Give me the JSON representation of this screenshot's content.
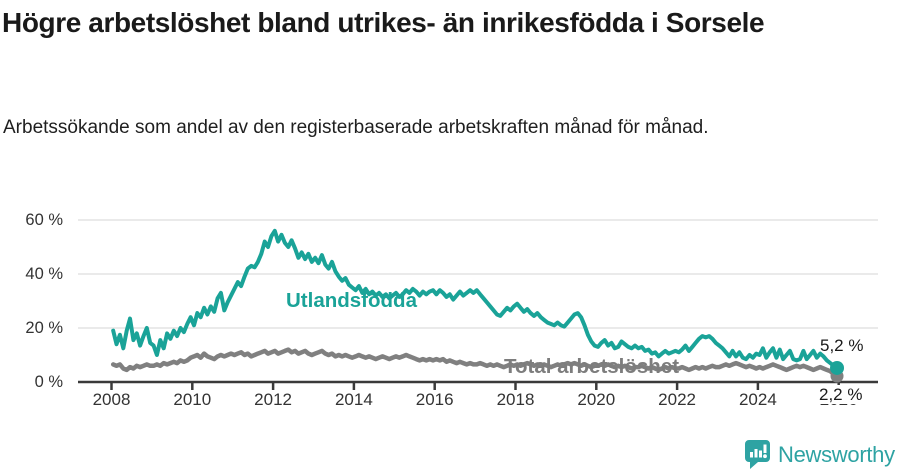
{
  "header": {
    "title": "Högre arbetslöshet bland utrikes- än inrikesfödda i Sorsele",
    "subtitle": "Arbetssökande som andel av den registerbaserade arbetskraften månad för månad."
  },
  "chart_data": {
    "type": "line",
    "title": "Högre arbetslöshet bland utrikes- än inrikesfödda i Sorsele",
    "xlabel": "",
    "ylabel": "",
    "unit": "%",
    "frequency": "monthly",
    "start": {
      "year": 2008,
      "month": 1
    },
    "x_axis": {
      "ticks": [
        2008,
        2010,
        2012,
        2014,
        2016,
        2018,
        2020,
        2022,
        2024,
        2026
      ],
      "range": [
        2007.2,
        2027.0
      ]
    },
    "y_axis": {
      "ticks": [
        {
          "value": 0,
          "label": "0 %"
        },
        {
          "value": 20,
          "label": "20 %"
        },
        {
          "value": 40,
          "label": "40 %"
        },
        {
          "value": 60,
          "label": "60 %"
        }
      ],
      "range": [
        0,
        60
      ],
      "grid": true
    },
    "legend_position": "inline-labels",
    "series": [
      {
        "name": "Utlandsfödda",
        "color": "#1aa398",
        "end_label": "5,2 %",
        "end_value": 5.2,
        "values": [
          19,
          14,
          17.5,
          12.5,
          19,
          23.5,
          15.5,
          18,
          13.5,
          17,
          20,
          14.5,
          13.5,
          10,
          15.5,
          12.5,
          18,
          16,
          19,
          17,
          20,
          18.5,
          21.5,
          24,
          21,
          25.5,
          24,
          27.5,
          25,
          28,
          26,
          31,
          33,
          26.5,
          29.5,
          32,
          34.5,
          37,
          35.5,
          39,
          42,
          43,
          42.5,
          44.5,
          47.5,
          52,
          50,
          54,
          56,
          52,
          54.5,
          51.5,
          50,
          52.5,
          49.5,
          46,
          48,
          45.5,
          47.5,
          44.5,
          46,
          44,
          47,
          43.5,
          42,
          44.5,
          41,
          39,
          37.5,
          38.5,
          36,
          35,
          34,
          35.5,
          33,
          34.5,
          32.5,
          33.5,
          32,
          33,
          31.5,
          32.5,
          31,
          32,
          33,
          31.5,
          32.5,
          34,
          33,
          34.5,
          33.5,
          32,
          33.5,
          32.5,
          33.5,
          34,
          32.5,
          34,
          33,
          31.5,
          32.5,
          30.5,
          32,
          33.5,
          32,
          33,
          34,
          33,
          34,
          32.5,
          31,
          29.5,
          28,
          26.5,
          25,
          24.5,
          26,
          27.5,
          26.5,
          28,
          29,
          27.5,
          26,
          27,
          25.5,
          24.5,
          25.5,
          24,
          23,
          22,
          21.5,
          21,
          22,
          21,
          20.5,
          22,
          23.5,
          25,
          25.5,
          24,
          21,
          17.5,
          15,
          13.5,
          13,
          14.5,
          15.5,
          13.5,
          14.5,
          12.5,
          13,
          15,
          14,
          13,
          12.5,
          13.5,
          12.5,
          13,
          11.5,
          12,
          10.5,
          11,
          9.5,
          10.5,
          11.5,
          10.5,
          11,
          11.5,
          11,
          12,
          13.5,
          11.5,
          13,
          14.5,
          16,
          17,
          16.5,
          17,
          16,
          14.5,
          13.5,
          12.5,
          11,
          9.5,
          11.5,
          9.5,
          11,
          9,
          8.5,
          10,
          9,
          10.5,
          10,
          12.5,
          9,
          11,
          12.5,
          9,
          12,
          8.5,
          10,
          11.5,
          8.5,
          8,
          8.5,
          11.5,
          8.5,
          10,
          11.5,
          9,
          10.5,
          9.5,
          8,
          7,
          6,
          5.2
        ]
      },
      {
        "name": "Total arbetslöshet",
        "color": "#808080",
        "end_label": "2,2 %",
        "end_value": 2.2,
        "values": [
          6.5,
          6,
          6.5,
          5,
          4.5,
          5.5,
          5,
          6,
          5.5,
          6,
          6.5,
          6,
          6,
          6.5,
          6,
          7,
          6.5,
          7,
          7.5,
          7,
          8,
          7.5,
          8,
          9,
          9.5,
          10,
          9,
          10.5,
          9.5,
          9,
          8.5,
          9.5,
          10,
          9.5,
          10,
          10.5,
          10,
          10.5,
          11,
          10,
          10.5,
          9.5,
          10,
          10.5,
          11,
          11.5,
          10.5,
          11,
          11.5,
          10.5,
          11,
          11.5,
          12,
          11,
          11.5,
          10.5,
          11,
          11.5,
          10.5,
          10,
          10.5,
          11,
          11.5,
          10.5,
          10,
          10.5,
          9.5,
          10,
          9.5,
          10,
          9.5,
          9,
          9.5,
          10,
          9.5,
          9,
          9.5,
          9,
          8.5,
          9,
          9.5,
          9,
          8.5,
          9,
          9.5,
          9,
          9.5,
          10,
          9.5,
          9,
          8.5,
          8,
          8.5,
          8,
          8.5,
          8,
          8.5,
          8,
          8.5,
          7.5,
          8,
          7.5,
          7,
          7.5,
          7,
          6.5,
          7,
          6.5,
          6.5,
          7,
          6.5,
          6,
          6.5,
          6,
          6.5,
          6,
          5.5,
          6,
          6.5,
          6,
          6.5,
          6,
          6.5,
          7,
          6.5,
          6,
          6.5,
          6,
          6.5,
          6,
          5.5,
          6,
          6.5,
          6,
          6.5,
          7,
          6.5,
          7,
          6.5,
          6,
          6.5,
          6,
          5.5,
          6,
          6,
          6.5,
          6,
          6.5,
          6,
          5.5,
          6,
          5.5,
          6,
          5.5,
          5,
          5.5,
          5.5,
          6,
          5.5,
          5,
          5.5,
          5,
          4.5,
          5,
          5.5,
          5,
          5.5,
          5,
          5,
          5.5,
          5,
          4.5,
          5,
          5.5,
          5,
          5.5,
          5,
          5.5,
          6,
          5.5,
          5.5,
          6,
          6.5,
          6,
          6.5,
          7,
          6.5,
          6,
          5.5,
          6,
          5.5,
          5,
          5.5,
          5,
          5.5,
          6,
          6.5,
          6,
          5.5,
          5,
          4.5,
          5,
          5.5,
          6,
          5.5,
          6,
          5.5,
          5,
          4.5,
          5,
          5.5,
          5,
          4.5,
          4,
          3,
          2.2
        ]
      }
    ],
    "colors": {
      "accent_teal": "#1aa398",
      "series_gray": "#808080",
      "axis": "#3a3a3a",
      "grid": "#dddddd",
      "text": "#1a1a1a"
    }
  },
  "logo": {
    "text": "Newsworthy",
    "icon": "newsworthy-speech-bubble-chart-icon",
    "color": "#2ea3a3"
  }
}
